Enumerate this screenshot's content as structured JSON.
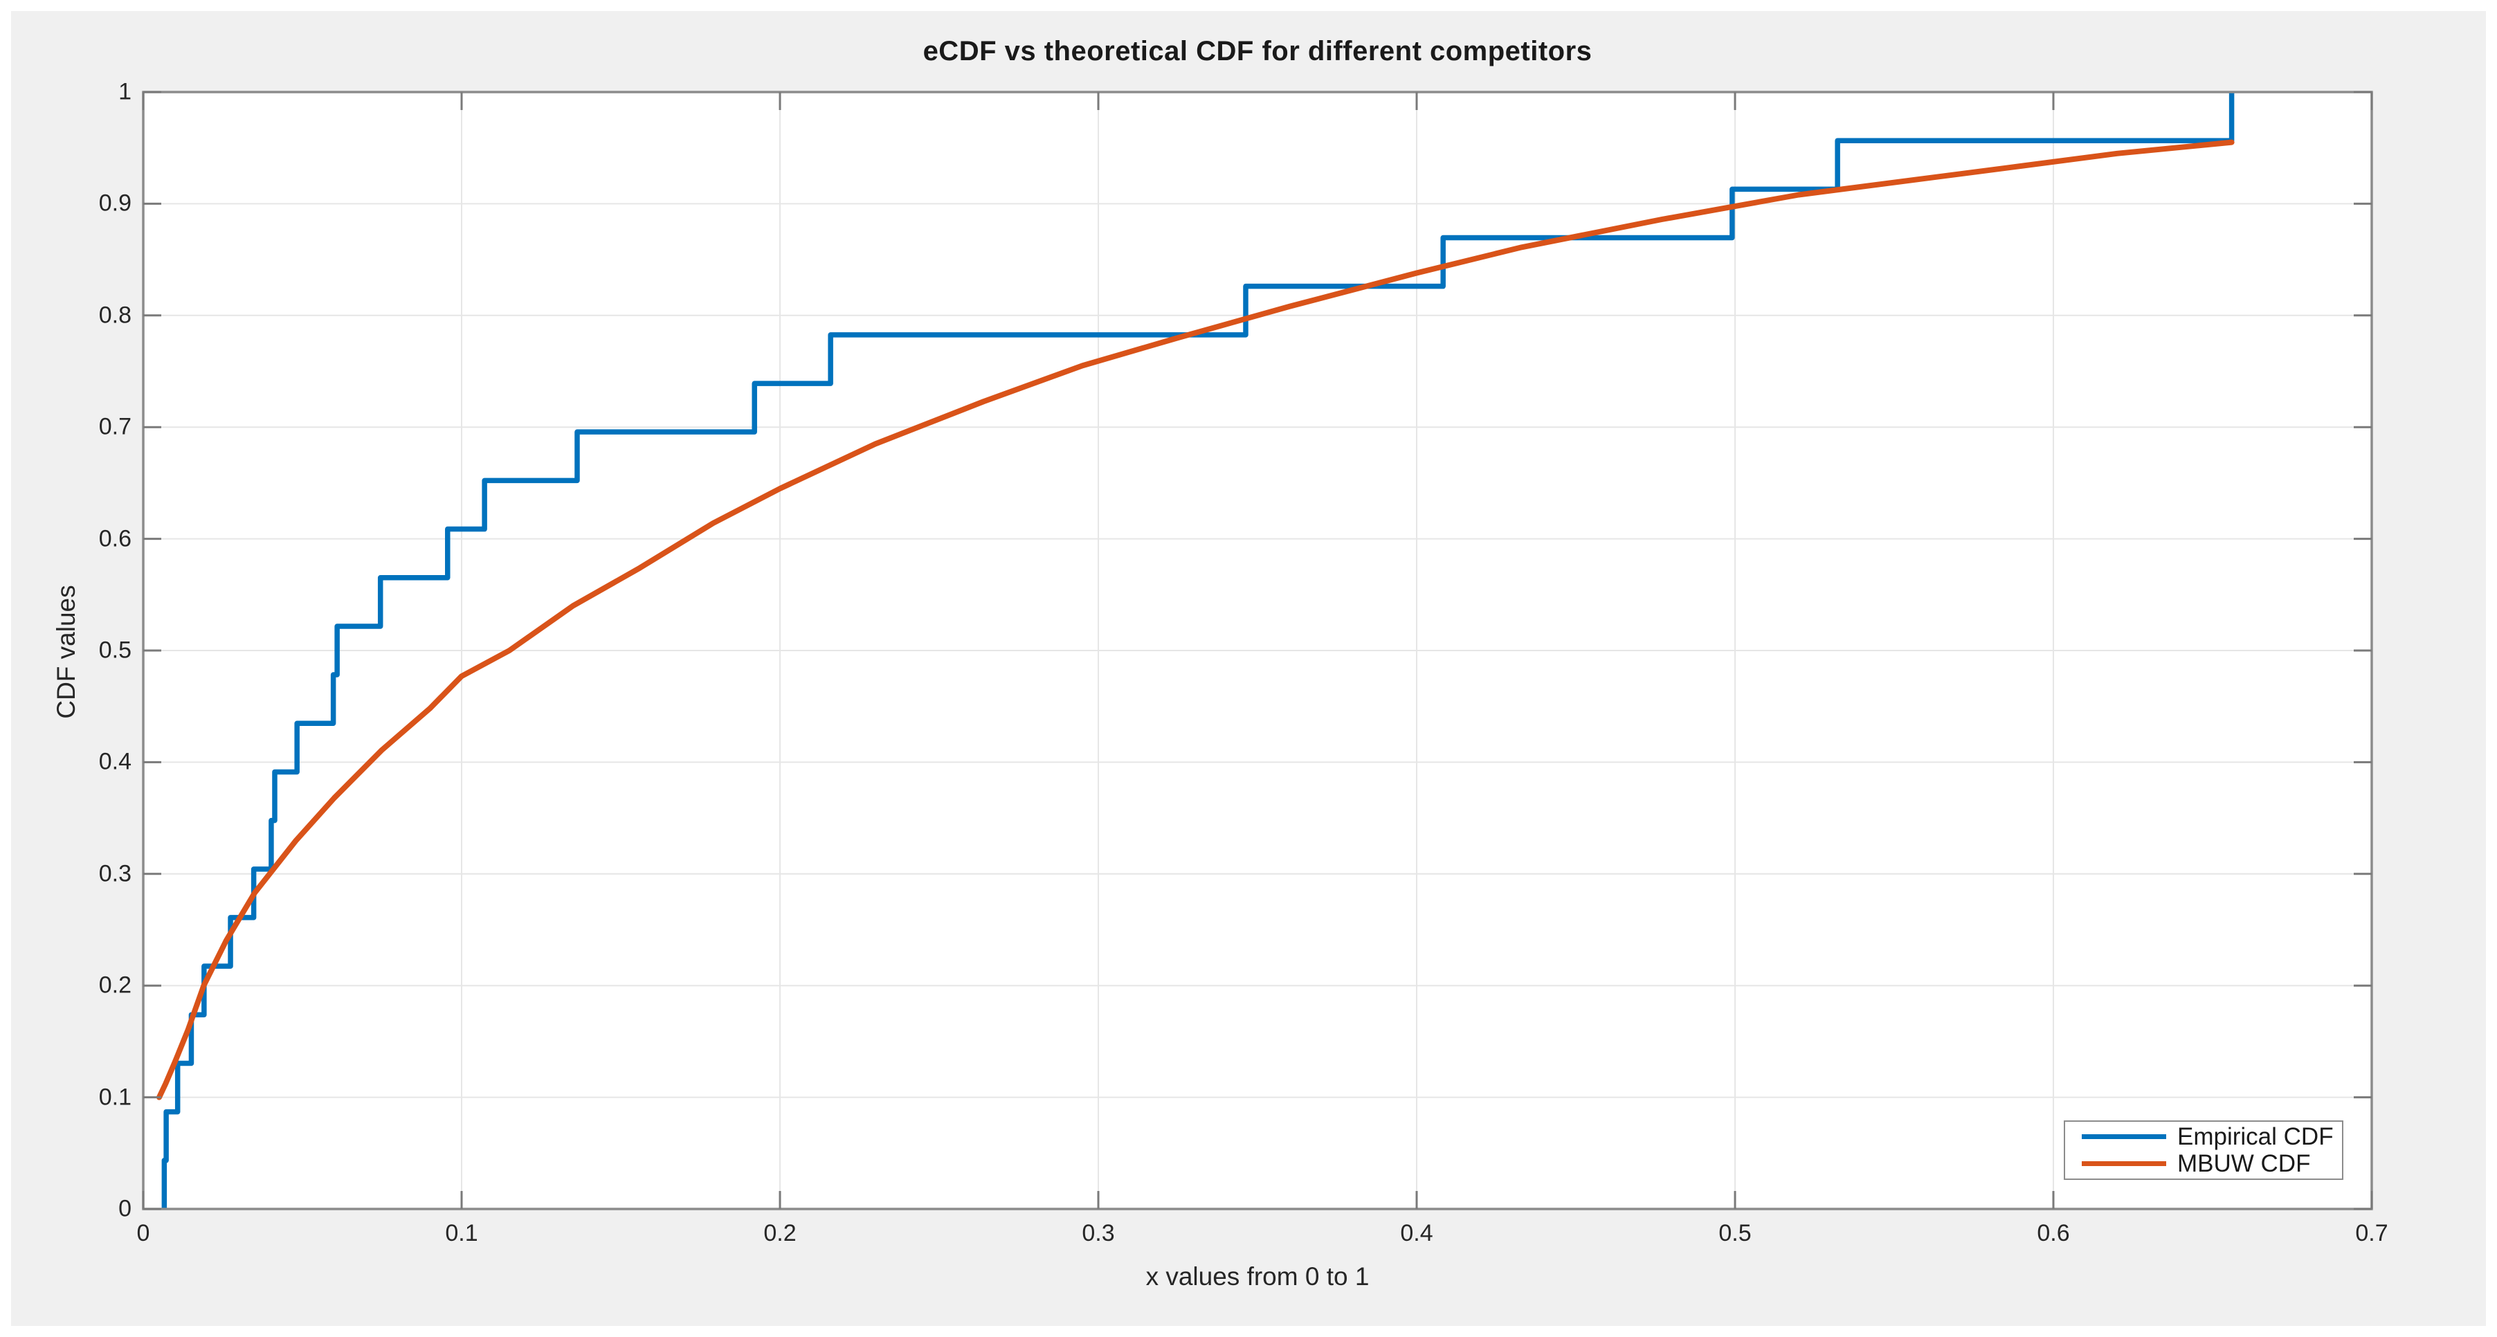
{
  "figure": {
    "title": "eCDF vs theoretical CDF for different competitors",
    "xlabel": "x values from 0 to 1",
    "ylabel": "CDF values"
  },
  "legend": {
    "position": "southeast",
    "items": [
      {
        "label": "Empirical CDF",
        "color": "#0072bd"
      },
      {
        "label": "MBUW CDF",
        "color": "#d95319"
      }
    ]
  },
  "colors": {
    "empirical": "#0072bd",
    "mbuw": "#d95319",
    "figure_bg": "#f0f0f0",
    "plot_bg": "#ffffff",
    "grid": "#e6e6e6",
    "axis": "#8c8c8c",
    "tick": "#7a7a7a",
    "text": "#262626"
  },
  "chart_data": {
    "type": "line",
    "title": "eCDF vs theoretical CDF for different competitors",
    "xlabel": "x values from 0 to 1",
    "ylabel": "CDF values",
    "xlim": [
      0,
      0.7
    ],
    "ylim": [
      0,
      1
    ],
    "xticks": [
      "0",
      "0.1",
      "0.2",
      "0.3",
      "0.4",
      "0.5",
      "0.6",
      "0.7"
    ],
    "yticks": [
      "0",
      "0.1",
      "0.2",
      "0.3",
      "0.4",
      "0.5",
      "0.6",
      "0.7",
      "0.8",
      "0.9",
      "1"
    ],
    "grid": true,
    "legend_position": "southeast",
    "series": [
      {
        "name": "Empirical CDF",
        "style": "stairs",
        "color": "#0072bd",
        "n_samples": 23,
        "step_height": 0.0435,
        "points": [
          [
            0.0066,
            0.0435
          ],
          [
            0.0072,
            0.087
          ],
          [
            0.0108,
            0.1304
          ],
          [
            0.0151,
            0.1739
          ],
          [
            0.0191,
            0.2174
          ],
          [
            0.0274,
            0.2609
          ],
          [
            0.0347,
            0.3043
          ],
          [
            0.0402,
            0.3478
          ],
          [
            0.0413,
            0.3913
          ],
          [
            0.0483,
            0.4348
          ],
          [
            0.0597,
            0.4783
          ],
          [
            0.0609,
            0.5217
          ],
          [
            0.0745,
            0.5652
          ],
          [
            0.0956,
            0.6087
          ],
          [
            0.1072,
            0.6522
          ],
          [
            0.1363,
            0.6957
          ],
          [
            0.192,
            0.7391
          ],
          [
            0.2159,
            0.7826
          ],
          [
            0.3463,
            0.8261
          ],
          [
            0.4083,
            0.8696
          ],
          [
            0.4991,
            0.913
          ],
          [
            0.5322,
            0.9565
          ],
          [
            0.656,
            1.0
          ]
        ]
      },
      {
        "name": "MBUW CDF",
        "style": "smooth",
        "color": "#d95319",
        "points": [
          [
            0.005,
            0.1
          ],
          [
            0.007,
            0.112
          ],
          [
            0.01,
            0.132
          ],
          [
            0.014,
            0.16
          ],
          [
            0.019,
            0.2
          ],
          [
            0.026,
            0.24
          ],
          [
            0.035,
            0.283
          ],
          [
            0.048,
            0.33
          ],
          [
            0.06,
            0.368
          ],
          [
            0.075,
            0.411
          ],
          [
            0.09,
            0.448
          ],
          [
            0.1,
            0.477
          ],
          [
            0.115,
            0.5
          ],
          [
            0.135,
            0.54
          ],
          [
            0.156,
            0.574
          ],
          [
            0.179,
            0.614
          ],
          [
            0.2,
            0.645
          ],
          [
            0.23,
            0.685
          ],
          [
            0.264,
            0.723
          ],
          [
            0.295,
            0.755
          ],
          [
            0.325,
            0.78
          ],
          [
            0.36,
            0.808
          ],
          [
            0.4,
            0.838
          ],
          [
            0.433,
            0.861
          ],
          [
            0.477,
            0.886
          ],
          [
            0.52,
            0.908
          ],
          [
            0.585,
            0.932
          ],
          [
            0.62,
            0.945
          ],
          [
            0.656,
            0.955
          ]
        ]
      }
    ]
  }
}
